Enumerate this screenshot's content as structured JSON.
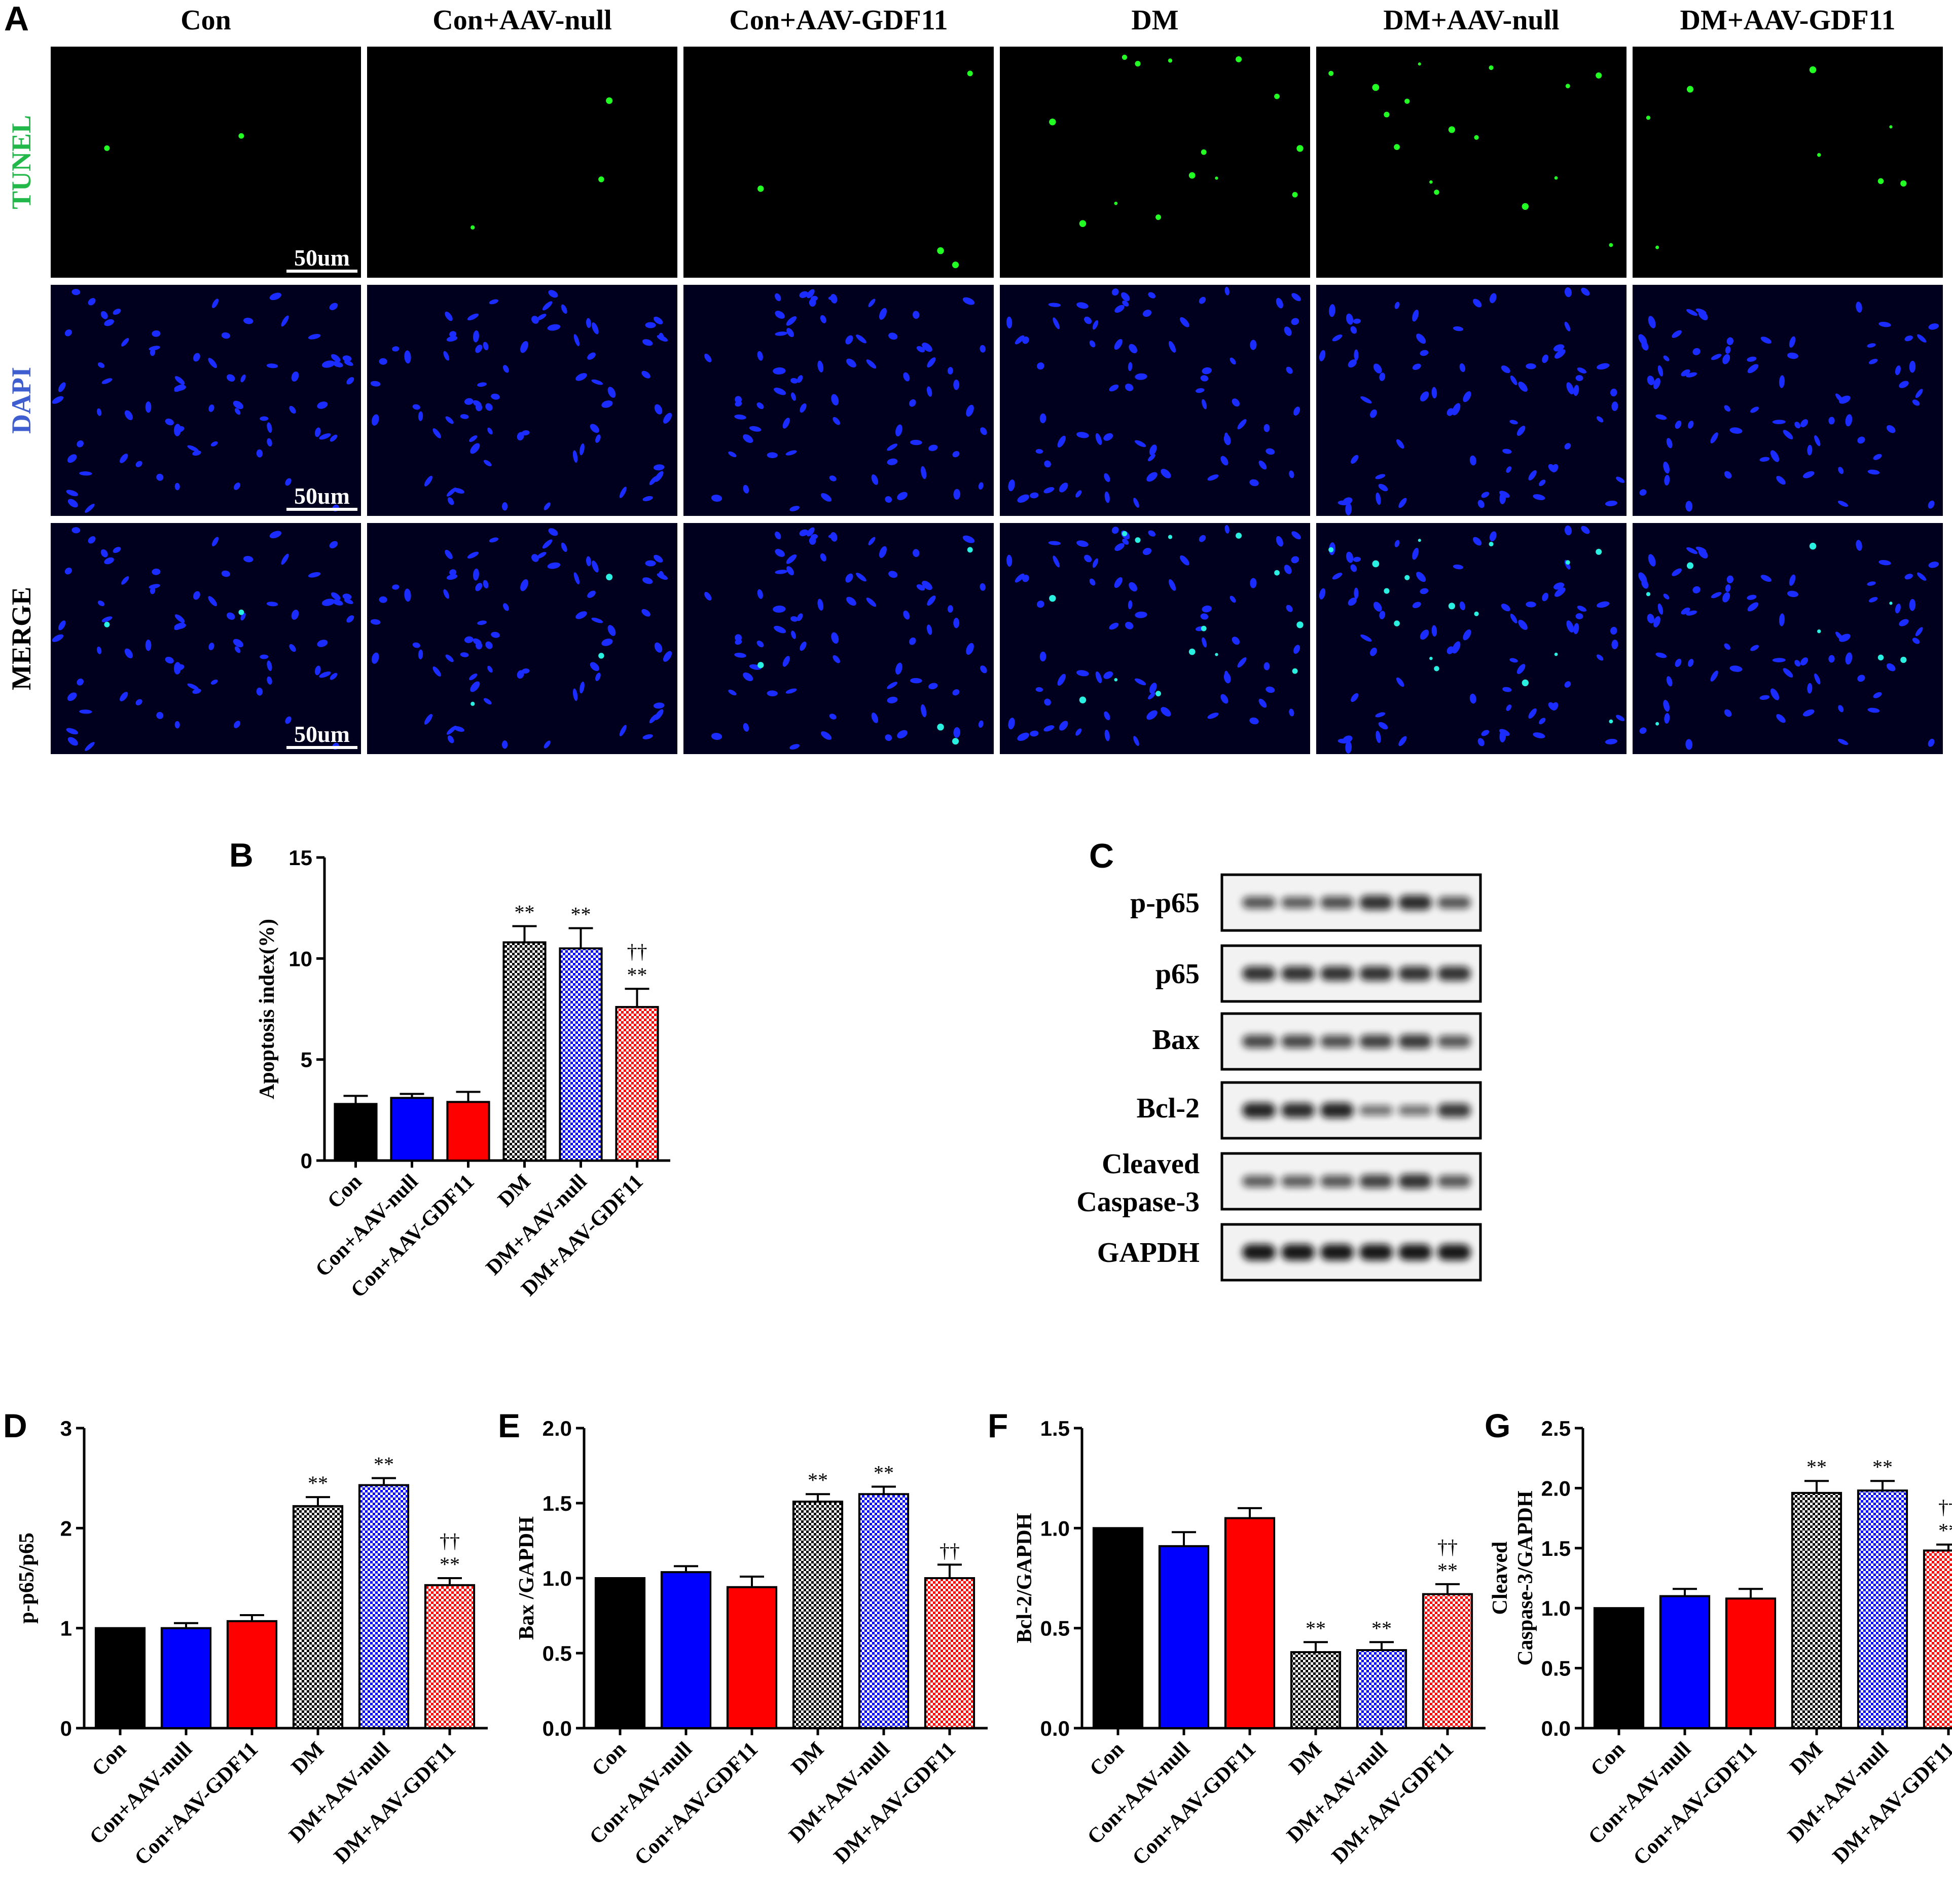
{
  "panel_letters": {
    "A": "A",
    "B": "B",
    "C": "C",
    "D": "D",
    "E": "E",
    "F": "F",
    "G": "G"
  },
  "groups": [
    "Con",
    "Con+AAV-null",
    "Con+AAV-GDF11",
    "DM",
    "DM+AAV-null",
    "DM+AAV-GDF11"
  ],
  "colors": {
    "con": "#000000",
    "con_null": "#0000ff",
    "con_gdf11": "#ff0000",
    "dm": "#000000",
    "dm_null": "#0000ff",
    "dm_gdf11": "#ff0000",
    "tunel": "#22b84a",
    "dapi": "#3f5fd0",
    "merge": "#000000"
  },
  "panel_a": {
    "rows": [
      {
        "label": "TUNEL",
        "color": "#22b84a"
      },
      {
        "label": "DAPI",
        "color": "#3f5fd0"
      },
      {
        "label": "MERGE",
        "color": "#000000"
      }
    ],
    "scale_bar": "50um"
  },
  "panel_c": {
    "labels": [
      "p-p65",
      "p65",
      "Bax",
      "Bcl-2",
      "Cleaved",
      "Caspase-3",
      "GAPDH"
    ]
  },
  "chart_data": [
    {
      "id": "B",
      "type": "bar",
      "ylabel": "Apoptosis index(%)",
      "ylim": [
        0,
        15
      ],
      "yticks": [
        "0",
        "5",
        "10",
        "15"
      ],
      "values": [
        2.8,
        3.1,
        2.9,
        10.8,
        10.5,
        7.6
      ],
      "errors": [
        0.4,
        0.2,
        0.5,
        0.8,
        1.0,
        0.9
      ],
      "annotations": [
        [],
        [],
        [],
        [
          "**"
        ],
        [
          "**"
        ],
        [
          "**",
          "††"
        ]
      ]
    },
    {
      "id": "D",
      "type": "bar",
      "ylabel": "p-p65/p65",
      "ylim": [
        0,
        3
      ],
      "yticks": [
        "0",
        "1",
        "2",
        "3"
      ],
      "values": [
        1.0,
        1.0,
        1.07,
        2.22,
        2.43,
        1.43
      ],
      "errors": [
        0.0,
        0.05,
        0.06,
        0.09,
        0.07,
        0.07
      ],
      "annotations": [
        [],
        [],
        [],
        [
          "**"
        ],
        [
          "**"
        ],
        [
          "**",
          "††"
        ]
      ]
    },
    {
      "id": "E",
      "type": "bar",
      "ylabel": "Bax /GAPDH",
      "ylim": [
        0,
        2.0
      ],
      "yticks": [
        "0.0",
        "0.5",
        "1.0",
        "1.5",
        "2.0"
      ],
      "values": [
        1.0,
        1.04,
        0.94,
        1.51,
        1.56,
        1.0
      ],
      "errors": [
        0.0,
        0.04,
        0.07,
        0.05,
        0.05,
        0.09
      ],
      "annotations": [
        [],
        [],
        [],
        [
          "**"
        ],
        [
          "**"
        ],
        [
          "††"
        ]
      ]
    },
    {
      "id": "F",
      "type": "bar",
      "ylabel": "Bcl-2/GAPDH",
      "ylim": [
        0,
        1.5
      ],
      "yticks": [
        "0.0",
        "0.5",
        "1.0",
        "1.5"
      ],
      "values": [
        1.0,
        0.91,
        1.05,
        0.38,
        0.39,
        0.67
      ],
      "errors": [
        0.0,
        0.07,
        0.05,
        0.05,
        0.04,
        0.05
      ],
      "annotations": [
        [],
        [],
        [],
        [
          "**"
        ],
        [
          "**"
        ],
        [
          "**",
          "††"
        ]
      ]
    },
    {
      "id": "G",
      "type": "bar",
      "ylabel_lines": [
        "Cleaved",
        "Caspase-3/GAPDH"
      ],
      "ylim": [
        0,
        2.5
      ],
      "yticks": [
        "0.0",
        "0.5",
        "1.0",
        "1.5",
        "2.0",
        "2.5"
      ],
      "values": [
        1.0,
        1.1,
        1.08,
        1.96,
        1.98,
        1.48
      ],
      "errors": [
        0.0,
        0.06,
        0.08,
        0.1,
        0.08,
        0.05
      ],
      "annotations": [
        [],
        [],
        [],
        [
          "**"
        ],
        [
          "**"
        ],
        [
          "**",
          "††"
        ]
      ]
    }
  ]
}
